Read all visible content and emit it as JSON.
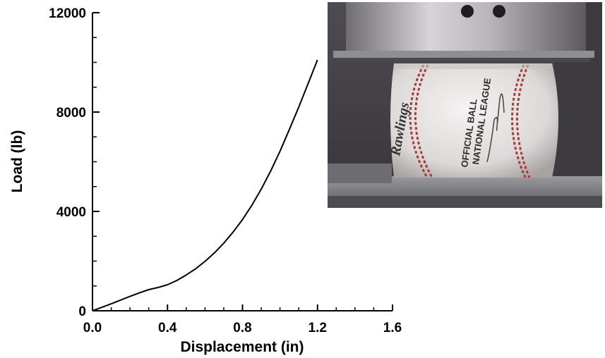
{
  "chart_data": {
    "type": "line",
    "xlabel": "Displacement (in)",
    "ylabel": "Load (lb)",
    "xlim": [
      0,
      1.6
    ],
    "ylim": [
      0,
      12000
    ],
    "x_ticks": [
      "0.0",
      "0.4",
      "0.8",
      "1.2",
      "1.6"
    ],
    "x_tick_values": [
      0,
      0.4,
      0.8,
      1.2,
      1.6
    ],
    "y_ticks": [
      "0",
      "4000",
      "8000",
      "12000"
    ],
    "y_tick_values": [
      0,
      4000,
      8000,
      12000
    ],
    "grid": false,
    "series": [
      {
        "x": [
          0,
          0.05,
          0.1,
          0.15,
          0.2,
          0.25,
          0.3,
          0.35,
          0.4,
          0.45,
          0.5,
          0.55,
          0.6,
          0.65,
          0.7,
          0.75,
          0.8,
          0.85,
          0.9,
          0.95,
          1.0,
          1.05,
          1.1,
          1.15,
          1.2
        ],
        "y": [
          0,
          140,
          280,
          430,
          580,
          720,
          850,
          940,
          1050,
          1220,
          1440,
          1690,
          1990,
          2330,
          2720,
          3170,
          3670,
          4250,
          4900,
          5620,
          6420,
          7300,
          8200,
          9150,
          10100
        ]
      }
    ],
    "inset": {
      "description": "photo",
      "logo_text": "Rawlings",
      "ball_text": [
        "OFFICIAL BALL",
        "NATIONAL LEAGUE"
      ]
    }
  }
}
